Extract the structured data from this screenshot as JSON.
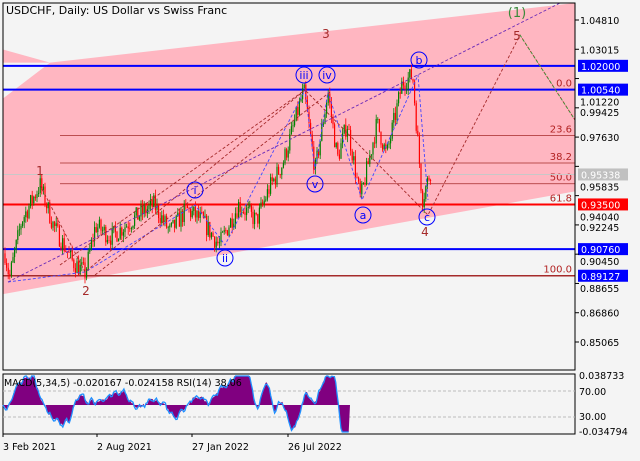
{
  "chart_data": {
    "type": "candlestick",
    "title": "USDCHF, Daily:  US Dollar vs Swiss Franc",
    "symbol": "USDCHF",
    "timeframe": "Daily",
    "ylim": [
      0.842,
      1.06
    ],
    "y_ticks": [
      "1.04810",
      "1.03015",
      "1.01220",
      "0.99425",
      "0.97630",
      "0.95835",
      "0.94040",
      "0.92245",
      "0.90450",
      "0.88655",
      "0.86860",
      "0.85065"
    ],
    "x_ticks": [
      "3 Feb 2021",
      "2 Aug 2021",
      "27 Jan 2022",
      "26 Jul 2022"
    ],
    "price_path": [
      [
        "2021-02-03",
        0.905
      ],
      [
        "2021-02-10",
        0.89
      ],
      [
        "2021-03-01",
        0.925
      ],
      [
        "2021-03-30",
        0.947
      ],
      [
        "2021-04-20",
        0.922
      ],
      [
        "2021-05-20",
        0.9
      ],
      [
        "2021-06-09",
        0.893
      ],
      [
        "2021-06-25",
        0.922
      ],
      [
        "2021-07-20",
        0.915
      ],
      [
        "2021-08-20",
        0.925
      ],
      [
        "2021-09-25",
        0.935
      ],
      [
        "2021-10-20",
        0.918
      ],
      [
        "2021-11-15",
        0.932
      ],
      [
        "2021-12-10",
        0.925
      ],
      [
        "2022-01-05",
        0.91
      ],
      [
        "2022-02-05",
        0.935
      ],
      [
        "2022-03-05",
        0.925
      ],
      [
        "2022-03-25",
        0.945
      ],
      [
        "2022-04-15",
        0.96
      ],
      [
        "2022-05-18",
        1.005
      ],
      [
        "2022-06-05",
        0.956
      ],
      [
        "2022-06-25",
        1.004
      ],
      [
        "2022-07-10",
        0.963
      ],
      [
        "2022-07-25",
        0.985
      ],
      [
        "2022-08-15",
        0.938
      ],
      [
        "2022-09-10",
        0.985
      ],
      [
        "2022-09-25",
        0.965
      ],
      [
        "2022-10-20",
        1.01
      ],
      [
        "2022-11-05",
        1.014
      ],
      [
        "2022-11-20",
        0.938
      ],
      [
        "2022-12-05",
        0.958
      ]
    ],
    "current_price": "0.95338",
    "horizontal_levels": [
      {
        "price": "1.02000",
        "color": "#0000ff"
      },
      {
        "price": "1.00540",
        "color": "#0000ff"
      },
      {
        "price": "0.93500",
        "color": "#ff0000"
      },
      {
        "price": "0.90760",
        "color": "#0000ff"
      },
      {
        "price": "0.89127",
        "color": "#0000ff"
      }
    ],
    "fibonacci_levels": [
      {
        "label": "0.0",
        "price": 1.0054
      },
      {
        "label": "23.6",
        "price": 0.9772
      },
      {
        "label": "38.2",
        "price": 0.9604
      },
      {
        "label": "50.0",
        "price": 0.9477
      },
      {
        "label": "61.8",
        "price": 0.9351
      },
      {
        "label": "100.0",
        "price": 0.8913
      }
    ],
    "wave_labels": {
      "major": [
        "1",
        "2",
        "3",
        "4",
        "5",
        "(1)"
      ],
      "minor": [
        "i",
        "ii",
        "iii",
        "iv",
        "v",
        "a",
        "b",
        "c"
      ]
    },
    "indicator": {
      "label": "MACD(5,34,5) -0.020167 -0.024158 RSI(14) 38.06",
      "macd_max": "0.038733",
      "macd_min": "-0.034794",
      "rsi_levels": [
        "70.00",
        "30.00"
      ]
    },
    "colors": {
      "bull": "#008000",
      "bear": "#ff0000",
      "channel": "#ffb6c1",
      "macd": "#800080",
      "rsi": "#1e90ff"
    }
  }
}
